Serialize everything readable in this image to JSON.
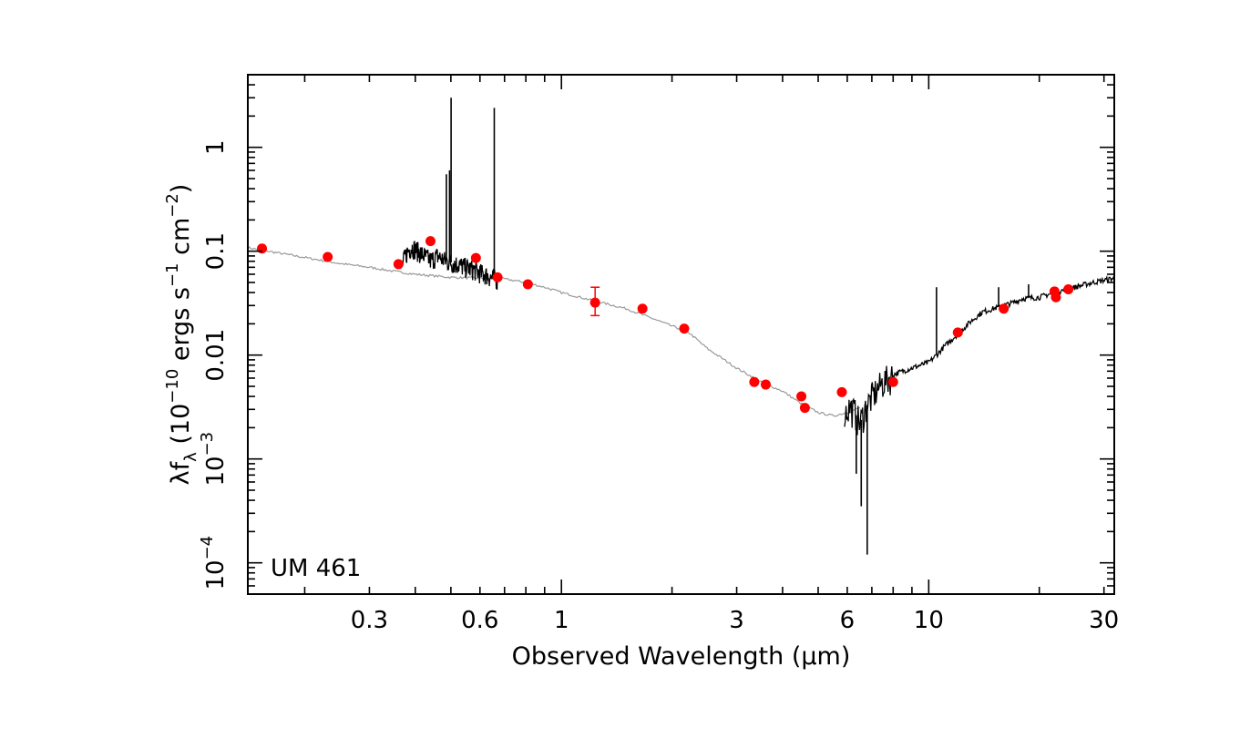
{
  "chart_data": {
    "type": "scatter",
    "title": "",
    "object_label": "UM 461",
    "xlabel": "Observed Wavelength (μm)",
    "ylabel": {
      "base": "λf",
      "sub": "λ",
      "open": " (10",
      "exp1": "−10",
      "mid": " ergs s",
      "exp2": "−1",
      "mid2": " cm",
      "exp3": "−2",
      "close": ")"
    },
    "x_scale": "log",
    "y_scale": "log",
    "xlim": [
      0.14,
      32
    ],
    "ylim": [
      5e-05,
      5
    ],
    "x_tick_labels": [
      {
        "value": 0.3,
        "label": "0.3"
      },
      {
        "value": 0.6,
        "label": "0.6"
      },
      {
        "value": 1,
        "label": "1"
      },
      {
        "value": 3,
        "label": "3"
      },
      {
        "value": 6,
        "label": "6"
      },
      {
        "value": 10,
        "label": "10"
      },
      {
        "value": 30,
        "label": "30"
      }
    ],
    "y_tick_labels": [
      {
        "value": 0.0001,
        "mant": "10",
        "exp": "−4"
      },
      {
        "value": 0.001,
        "mant": "10",
        "exp": "−3"
      },
      {
        "value": 0.01,
        "mant": "0.01",
        "exp": ""
      },
      {
        "value": 0.1,
        "mant": "0.1",
        "exp": ""
      },
      {
        "value": 1,
        "mant": "1",
        "exp": ""
      }
    ],
    "colors": {
      "photometry": "#ff0000",
      "spectrum": "#000000",
      "model": "#999999"
    },
    "series": [
      {
        "kind": "model",
        "points": [
          [
            0.14,
            0.108
          ],
          [
            0.17,
            0.096
          ],
          [
            0.2,
            0.087
          ],
          [
            0.25,
            0.076
          ],
          [
            0.3,
            0.07
          ],
          [
            0.35,
            0.064
          ],
          [
            0.4,
            0.06
          ],
          [
            0.5,
            0.056
          ],
          [
            0.6,
            0.055
          ],
          [
            0.7,
            0.054
          ],
          [
            0.8,
            0.05
          ],
          [
            0.9,
            0.045
          ],
          [
            1.0,
            0.04
          ],
          [
            1.2,
            0.034
          ],
          [
            1.5,
            0.028
          ],
          [
            1.8,
            0.022
          ],
          [
            2.0,
            0.019
          ],
          [
            2.2,
            0.017
          ],
          [
            2.5,
            0.0115
          ],
          [
            3.0,
            0.0075
          ],
          [
            3.5,
            0.0055
          ],
          [
            4.0,
            0.0045
          ],
          [
            4.5,
            0.0034
          ],
          [
            5.0,
            0.0028
          ],
          [
            5.5,
            0.0026
          ],
          [
            6.0,
            0.0028
          ],
          [
            6.5,
            0.0031
          ]
        ]
      },
      {
        "kind": "optical_spectrum",
        "points": [
          [
            0.37,
            0.078
          ],
          [
            0.38,
            0.098
          ],
          [
            0.39,
            0.11
          ],
          [
            0.4,
            0.105
          ],
          [
            0.42,
            0.092
          ],
          [
            0.44,
            0.082
          ],
          [
            0.46,
            0.09
          ],
          [
            0.48,
            0.082
          ],
          [
            0.5,
            0.078
          ],
          [
            0.52,
            0.075
          ],
          [
            0.55,
            0.07
          ],
          [
            0.58,
            0.066
          ],
          [
            0.6,
            0.062
          ],
          [
            0.62,
            0.06
          ],
          [
            0.65,
            0.055
          ],
          [
            0.67,
            0.054
          ]
        ],
        "lines": [
          {
            "x": 0.4861,
            "peak": 0.55
          },
          {
            "x": 0.4959,
            "peak": 0.6
          },
          {
            "x": 0.5007,
            "peak": 3.0
          },
          {
            "x": 0.6563,
            "peak": 2.4
          }
        ]
      },
      {
        "kind": "mir_spectrum",
        "points": [
          [
            5.9,
            0.0028
          ],
          [
            6.1,
            0.0032
          ],
          [
            6.3,
            0.0028
          ],
          [
            6.5,
            0.0022
          ],
          [
            6.7,
            0.003
          ],
          [
            7.0,
            0.004
          ],
          [
            7.5,
            0.0055
          ],
          [
            8.0,
            0.0065
          ],
          [
            9.0,
            0.0075
          ],
          [
            10.0,
            0.0085
          ],
          [
            10.5,
            0.01
          ],
          [
            11.0,
            0.012
          ],
          [
            12.0,
            0.016
          ],
          [
            13.0,
            0.021
          ],
          [
            14.0,
            0.026
          ],
          [
            15.0,
            0.028
          ],
          [
            17.0,
            0.032
          ],
          [
            18.0,
            0.035
          ],
          [
            20.0,
            0.036
          ],
          [
            22.0,
            0.04
          ],
          [
            25.0,
            0.045
          ],
          [
            28.0,
            0.05
          ],
          [
            32.0,
            0.055
          ]
        ],
        "lines": [
          {
            "x": 10.5,
            "peak": 0.045
          },
          {
            "x": 15.5,
            "peak": 0.045
          },
          {
            "x": 18.7,
            "peak": 0.048
          }
        ],
        "absorption": [
          {
            "x": 6.35,
            "trough": 0.00072
          },
          {
            "x": 6.55,
            "trough": 0.00035
          },
          {
            "x": 6.8,
            "trough": 0.00012
          }
        ]
      },
      {
        "kind": "photometry",
        "points": [
          {
            "x": 0.153,
            "y": 0.106
          },
          {
            "x": 0.231,
            "y": 0.088
          },
          {
            "x": 0.36,
            "y": 0.075
          },
          {
            "x": 0.44,
            "y": 0.125
          },
          {
            "x": 0.585,
            "y": 0.086
          },
          {
            "x": 0.67,
            "y": 0.056
          },
          {
            "x": 0.81,
            "y": 0.048
          },
          {
            "x": 1.235,
            "y": 0.032,
            "yerr_low": 0.024,
            "yerr_high": 0.045
          },
          {
            "x": 1.662,
            "y": 0.028
          },
          {
            "x": 2.159,
            "y": 0.018
          },
          {
            "x": 3.35,
            "y": 0.0055
          },
          {
            "x": 3.6,
            "y": 0.0052
          },
          {
            "x": 4.5,
            "y": 0.004
          },
          {
            "x": 4.6,
            "y": 0.0031
          },
          {
            "x": 5.8,
            "y": 0.0044
          },
          {
            "x": 8.0,
            "y": 0.0055
          },
          {
            "x": 12.0,
            "y": 0.0165
          },
          {
            "x": 16.0,
            "y": 0.028
          },
          {
            "x": 22.0,
            "y": 0.041
          },
          {
            "x": 22.2,
            "y": 0.036
          },
          {
            "x": 24.0,
            "y": 0.043
          }
        ]
      }
    ]
  }
}
